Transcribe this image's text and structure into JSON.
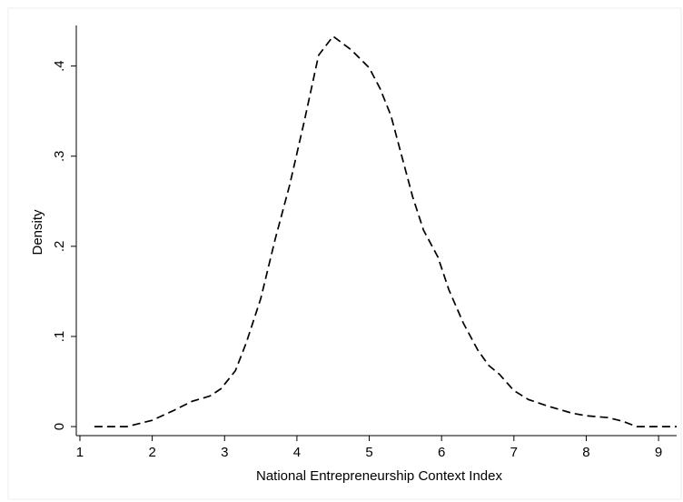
{
  "chart_data": {
    "type": "line",
    "title": "",
    "xlabel": "National Entrepreneurship Context Index",
    "ylabel": "Density",
    "xlim": [
      0.95,
      9.25
    ],
    "ylim": [
      -0.01,
      0.445
    ],
    "xticks": [
      1,
      2,
      3,
      4,
      5,
      6,
      7,
      8,
      9
    ],
    "xtick_labels": [
      "1",
      "2",
      "3",
      "4",
      "5",
      "6",
      "7",
      "8",
      "9"
    ],
    "yticks": [
      0,
      0.1,
      0.2,
      0.3,
      0.4
    ],
    "ytick_labels": [
      "0",
      ".1",
      ".2",
      ".3",
      ".4"
    ],
    "grid": false,
    "legend": "none",
    "line_style": "dashed",
    "line_color": "#000000",
    "series": [
      {
        "x": [
          1.2,
          1.4,
          1.65,
          2.0,
          2.3,
          2.55,
          2.8,
          2.95,
          3.15,
          3.3,
          3.5,
          3.7,
          3.9,
          4.1,
          4.3,
          4.5,
          4.75,
          5.0,
          5.15,
          5.3,
          5.45,
          5.6,
          5.75,
          5.95,
          6.1,
          6.3,
          6.5,
          6.65,
          6.8,
          7.0,
          7.2,
          7.5,
          7.8,
          8.0,
          8.3,
          8.5,
          8.7,
          8.9,
          9.1,
          9.25
        ],
        "y": [
          0.0,
          0.0,
          0.0,
          0.007,
          0.018,
          0.028,
          0.034,
          0.042,
          0.062,
          0.093,
          0.142,
          0.208,
          0.268,
          0.338,
          0.412,
          0.433,
          0.418,
          0.398,
          0.375,
          0.345,
          0.3,
          0.255,
          0.218,
          0.188,
          0.152,
          0.115,
          0.085,
          0.068,
          0.058,
          0.04,
          0.03,
          0.022,
          0.015,
          0.012,
          0.01,
          0.006,
          0.0,
          0.0,
          0.0,
          0.0
        ]
      }
    ]
  }
}
